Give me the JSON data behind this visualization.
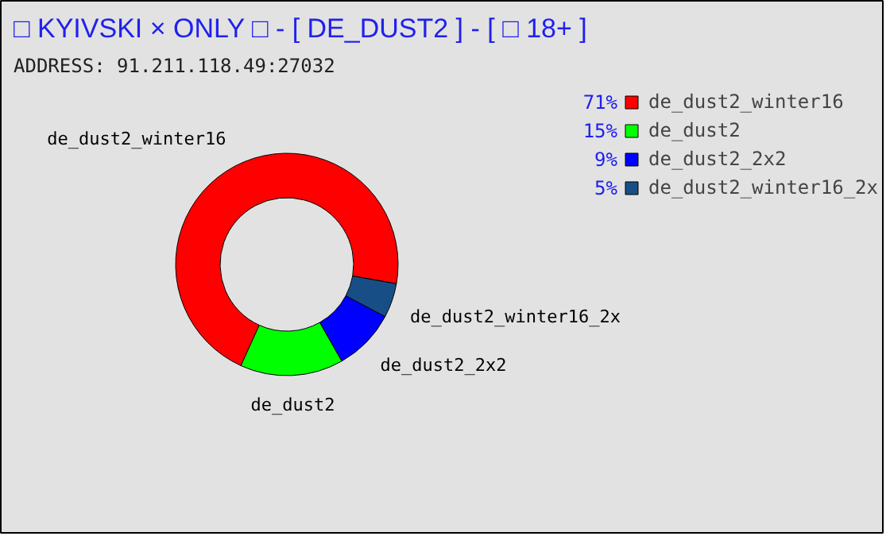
{
  "chart_data": {
    "type": "donut",
    "title": "□ KYIVSKI × ONLY □ - [ DE_DUST2 ] - [ □ 18+ ]",
    "subtitle": "ADDRESS: 91.211.118.49:27032",
    "categories": [
      "de_dust2_winter16",
      "de_dust2",
      "de_dust2_2x2",
      "de_dust2_winter16_2x"
    ],
    "values": [
      71,
      15,
      9,
      5
    ],
    "colors": [
      "#ff0000",
      "#00ff00",
      "#0000ff",
      "#174e86"
    ],
    "value_labels": [
      "71%",
      "15%",
      "9%",
      "5%"
    ],
    "legend": "top right"
  }
}
